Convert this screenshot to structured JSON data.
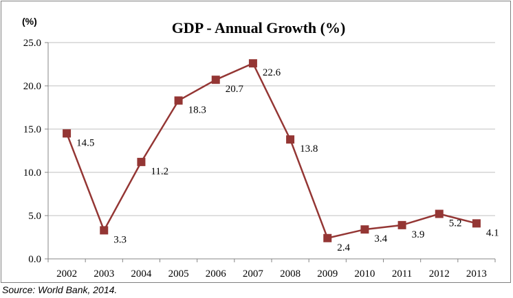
{
  "chart_data": {
    "type": "line",
    "title": "GDP - Annual Growth (%)",
    "ylabel": "(%)",
    "xlabel": "",
    "categories": [
      "2002",
      "2003",
      "2004",
      "2005",
      "2006",
      "2007",
      "2008",
      "2009",
      "2010",
      "2011",
      "2012",
      "2013"
    ],
    "series": [
      {
        "values": [
          14.5,
          3.3,
          11.2,
          18.3,
          20.7,
          22.6,
          13.8,
          2.4,
          3.4,
          3.9,
          5.2,
          4.1
        ],
        "labels": [
          "14.5",
          "3.3",
          "11.2",
          "18.3",
          "20.7",
          "22.6",
          "13.8",
          "2.4",
          "3.4",
          "3.9",
          "5.2",
          "4.1"
        ],
        "color": "#943634",
        "marker": "square"
      }
    ],
    "ylim": [
      0,
      25
    ],
    "yticks": [
      "0.0",
      "5.0",
      "10.0",
      "15.0",
      "20.0",
      "25.0"
    ],
    "grid": true,
    "legend": "none"
  },
  "source": "Source: World Bank, 2014.",
  "colors": {
    "line": "#943634",
    "grid": "#bfbfbf",
    "axis": "#868686"
  }
}
